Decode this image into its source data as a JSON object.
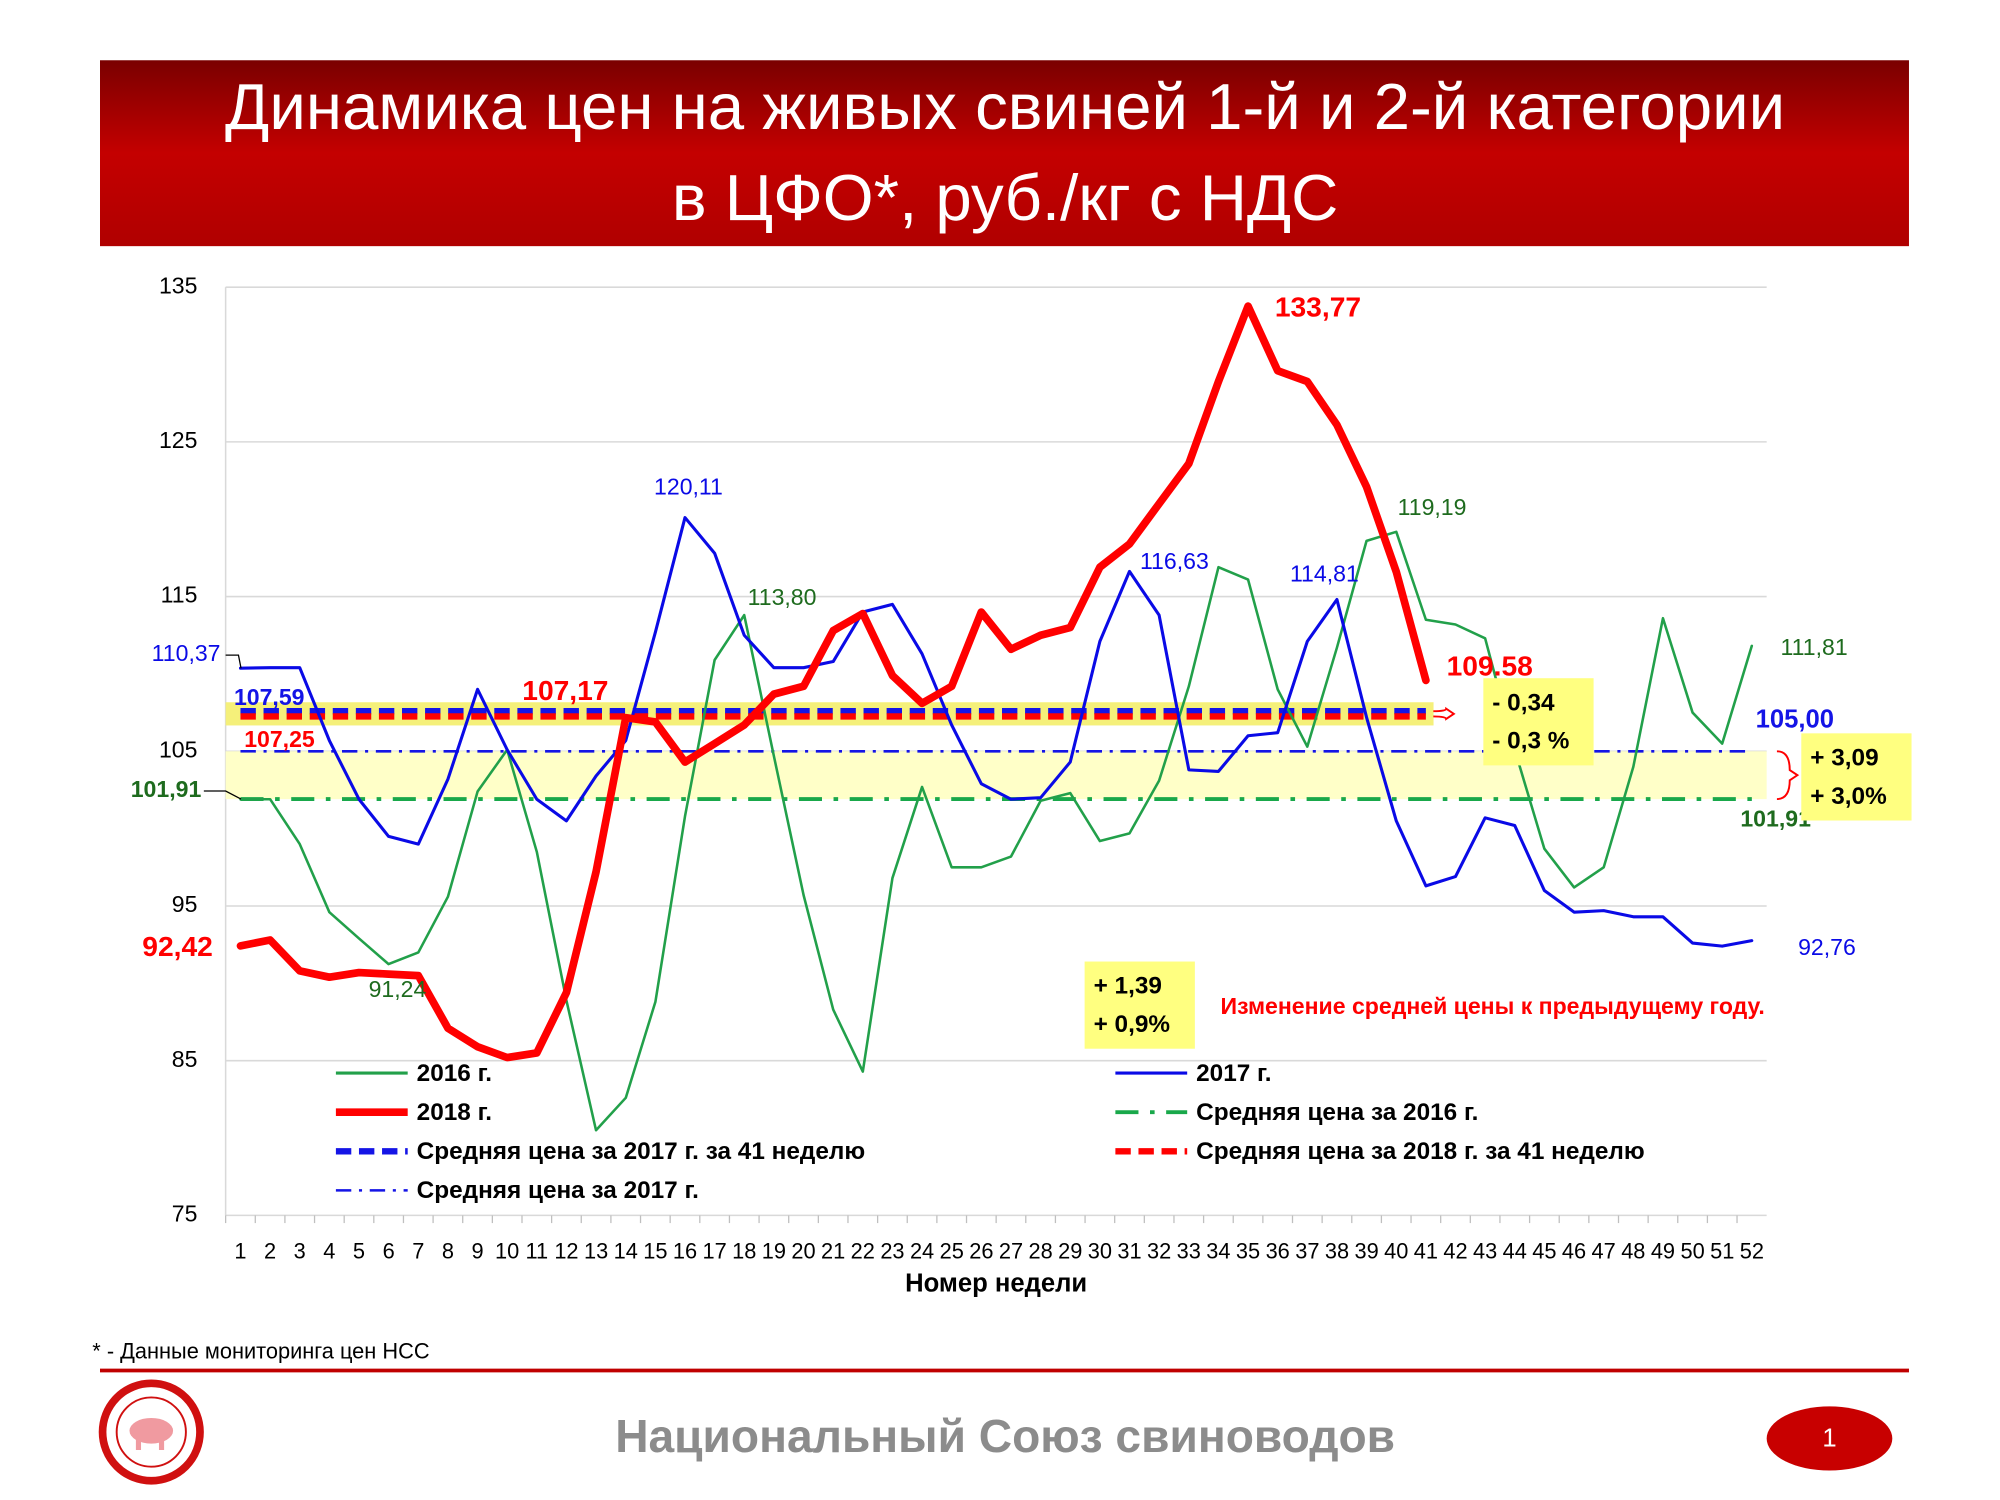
{
  "title": [
    "Динамика цен на живых свиней 1-й и 2-й категории",
    "в ЦФО*, руб./кг с НДС"
  ],
  "footnote": "* - Данные мониторинга цен НСС",
  "footer": "Национальный Союз свиноводов",
  "page_number": "1",
  "chart_data": {
    "type": "line",
    "x_label": "Номер недели",
    "categories": [
      1,
      2,
      3,
      4,
      5,
      6,
      7,
      8,
      9,
      10,
      11,
      12,
      13,
      14,
      15,
      16,
      17,
      18,
      19,
      20,
      21,
      22,
      23,
      24,
      25,
      26,
      27,
      28,
      29,
      30,
      31,
      32,
      33,
      34,
      35,
      36,
      37,
      38,
      39,
      40,
      41,
      42,
      43,
      44,
      45,
      46,
      47,
      48,
      49,
      50,
      51,
      52
    ],
    "ylim": [
      75,
      135
    ],
    "yticks": [
      75,
      85,
      95,
      105,
      115,
      125,
      135
    ],
    "grid": true,
    "series": [
      {
        "name": "2016 г.",
        "color": "#22a04a",
        "width": 2,
        "values": [
          101.9,
          101.9,
          99.0,
          94.6,
          92.9,
          91.24,
          92.0,
          95.6,
          102.4,
          105.1,
          98.5,
          88.9,
          80.5,
          82.6,
          88.8,
          100.8,
          110.9,
          113.8,
          104.7,
          95.7,
          88.3,
          84.3,
          96.8,
          102.7,
          97.5,
          97.5,
          98.2,
          101.8,
          102.3,
          99.2,
          99.7,
          103.1,
          109.2,
          116.9,
          116.1,
          109.0,
          105.3,
          111.7,
          118.6,
          119.19,
          113.5,
          113.2,
          112.3,
          105.1,
          98.7,
          96.2,
          97.5,
          104.0,
          113.6,
          107.5,
          105.5,
          111.81
        ],
        "value_labels": [
          null,
          null,
          null,
          null,
          null,
          "91,24",
          null,
          null,
          null,
          null,
          null,
          null,
          null,
          null,
          null,
          null,
          null,
          "113,80",
          null,
          null,
          null,
          null,
          null,
          null,
          null,
          null,
          null,
          null,
          null,
          null,
          null,
          null,
          null,
          null,
          null,
          null,
          null,
          null,
          null,
          "119,19",
          null,
          null,
          null,
          null,
          null,
          null,
          null,
          null,
          null,
          null,
          null,
          "111,81"
        ]
      },
      {
        "name": "2017 г.",
        "color": "#0a0ae6",
        "width": 2.4,
        "values": [
          110.37,
          110.4,
          110.4,
          105.7,
          101.9,
          99.5,
          99.0,
          103.2,
          109.0,
          105.1,
          101.9,
          100.5,
          103.4,
          105.7,
          112.7,
          120.11,
          117.8,
          112.5,
          110.4,
          110.4,
          110.8,
          114.0,
          114.5,
          111.3,
          106.7,
          102.9,
          101.9,
          102.0,
          104.3,
          112.1,
          116.63,
          113.8,
          103.8,
          103.7,
          106.0,
          106.2,
          112.1,
          114.81,
          107.2,
          100.5,
          96.3,
          96.9,
          100.7,
          100.2,
          96.0,
          94.6,
          94.7,
          94.3,
          94.3,
          92.6,
          92.4,
          92.76
        ],
        "value_labels": [
          "110,37",
          null,
          null,
          null,
          null,
          null,
          null,
          null,
          null,
          null,
          null,
          null,
          null,
          null,
          null,
          "120,11",
          null,
          null,
          null,
          null,
          null,
          null,
          null,
          null,
          null,
          null,
          null,
          null,
          null,
          null,
          "116,63",
          null,
          null,
          null,
          null,
          null,
          null,
          "114,81",
          null,
          null,
          null,
          null,
          null,
          null,
          null,
          null,
          null,
          null,
          null,
          null,
          null,
          "92,76"
        ]
      },
      {
        "name": "2018 г.",
        "color": "#ff0000",
        "width": 6,
        "values": [
          92.42,
          92.8,
          90.8,
          90.4,
          90.7,
          90.6,
          90.5,
          87.1,
          85.9,
          85.2,
          85.5,
          89.4,
          97.2,
          107.17,
          106.9,
          104.3,
          105.5,
          106.7,
          108.7,
          109.2,
          112.8,
          113.9,
          109.9,
          108.1,
          109.2,
          114.0,
          111.6,
          112.5,
          113.0,
          116.9,
          118.4,
          121.0,
          123.6,
          128.9,
          133.77,
          129.6,
          128.9,
          126.1,
          122.1,
          116.6,
          109.58,
          null,
          null,
          null,
          null,
          null,
          null,
          null,
          null,
          null,
          null,
          null
        ],
        "value_labels": [
          "92,42",
          null,
          null,
          null,
          null,
          null,
          null,
          null,
          null,
          null,
          null,
          null,
          null,
          "107,17",
          null,
          null,
          null,
          null,
          null,
          null,
          null,
          null,
          null,
          null,
          null,
          null,
          null,
          null,
          null,
          null,
          null,
          null,
          null,
          null,
          "133,77",
          null,
          null,
          null,
          null,
          null,
          "109.58",
          null,
          null,
          null,
          null,
          null,
          null,
          null,
          null,
          null,
          null,
          null
        ]
      }
    ],
    "reference_lines": [
      {
        "name": "Средняя цена за 2016 г.",
        "color": "#19a84a",
        "dash": "dashdot",
        "width": 3,
        "value": 101.91,
        "value_label": "101,91",
        "x_range": [
          1,
          52
        ]
      },
      {
        "name": "Средняя цена за 2017 г. за 41 неделю",
        "color": "#1414e6",
        "dash": "dashed",
        "width": 5,
        "value": 107.59,
        "value_label": "107,59",
        "x_range": [
          1,
          41
        ]
      },
      {
        "name": "Средняя цена за 2018 г. за 41 неделю",
        "color": "#ff0000",
        "dash": "dashed",
        "width": 5,
        "value": 107.25,
        "value_label": "107,25",
        "x_range": [
          1,
          41
        ]
      },
      {
        "name": "Средняя цена за 2017 г.",
        "color": "#1414e6",
        "dash": "dashdot",
        "width": 2,
        "value": 105.0,
        "value_label": "105,00",
        "x_range": [
          1,
          52
        ]
      }
    ],
    "annotations": [
      {
        "lines": [
          "- 0,34",
          "- 0,3 %"
        ]
      },
      {
        "lines": [
          "+ 3,09",
          "+ 3,0%"
        ]
      },
      {
        "lines": [
          "+ 1,39",
          "+ 0,9%"
        ]
      }
    ],
    "note": "Изменение средней цены к предыдущему году."
  }
}
